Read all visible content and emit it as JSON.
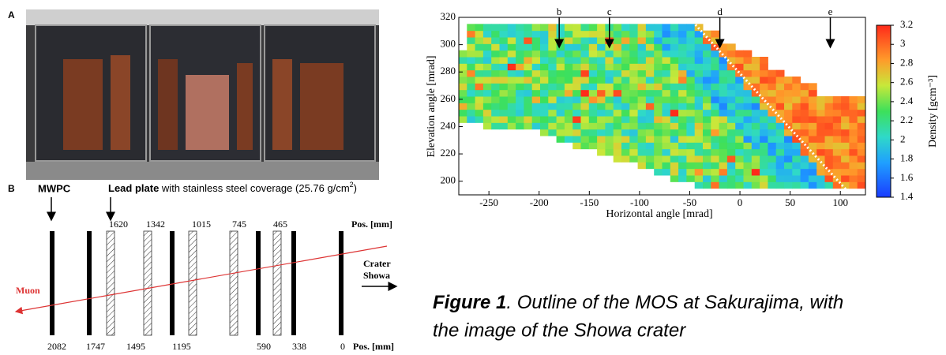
{
  "panel_a": {
    "label": "A"
  },
  "panel_b": {
    "label": "B",
    "mwpc_label": "MWPC",
    "lead_label": "Lead plate",
    "lead_desc": "with stainless steel coverage (25.76 g/cm",
    "lead_desc_sup": "2",
    "lead_desc_end": ")",
    "top_positions": [
      1620,
      1342,
      1015,
      745,
      465
    ],
    "top_unit": "Pos. [mm]",
    "bottom_positions": [
      2082,
      1747,
      1495,
      1195,
      590,
      338,
      0
    ],
    "bottom_unit": "Pos. [mm]",
    "muon_label": "Muon",
    "crater_label": [
      "Crater",
      "Showa"
    ]
  },
  "density_map": {
    "xlabel": "Horizontal angle [mrad]",
    "ylabel": "Elevation angle [mrad]",
    "xlim": [
      -280,
      125
    ],
    "ylim": [
      190,
      320
    ],
    "xticks": [
      -250,
      -200,
      -150,
      -100,
      -50,
      0,
      50,
      100
    ],
    "yticks": [
      200,
      220,
      240,
      260,
      280,
      300,
      320
    ],
    "markers": [
      {
        "label": "b",
        "x": -180
      },
      {
        "label": "c",
        "x": -130
      },
      {
        "label": "d",
        "x": -20
      },
      {
        "label": "e",
        "x": 90
      }
    ],
    "clim": [
      1.4,
      3.2
    ],
    "cticks": [
      1.4,
      1.6,
      1.8,
      2,
      2.2,
      2.4,
      2.6,
      2.8,
      3,
      3.2
    ],
    "clabel": "Density [gcm⁻³]"
  },
  "caption": {
    "prefix": "Figure 1",
    "line1": ". Outline of the MOS at Sakurajima, with",
    "line2": "the image of the Showa crater"
  }
}
